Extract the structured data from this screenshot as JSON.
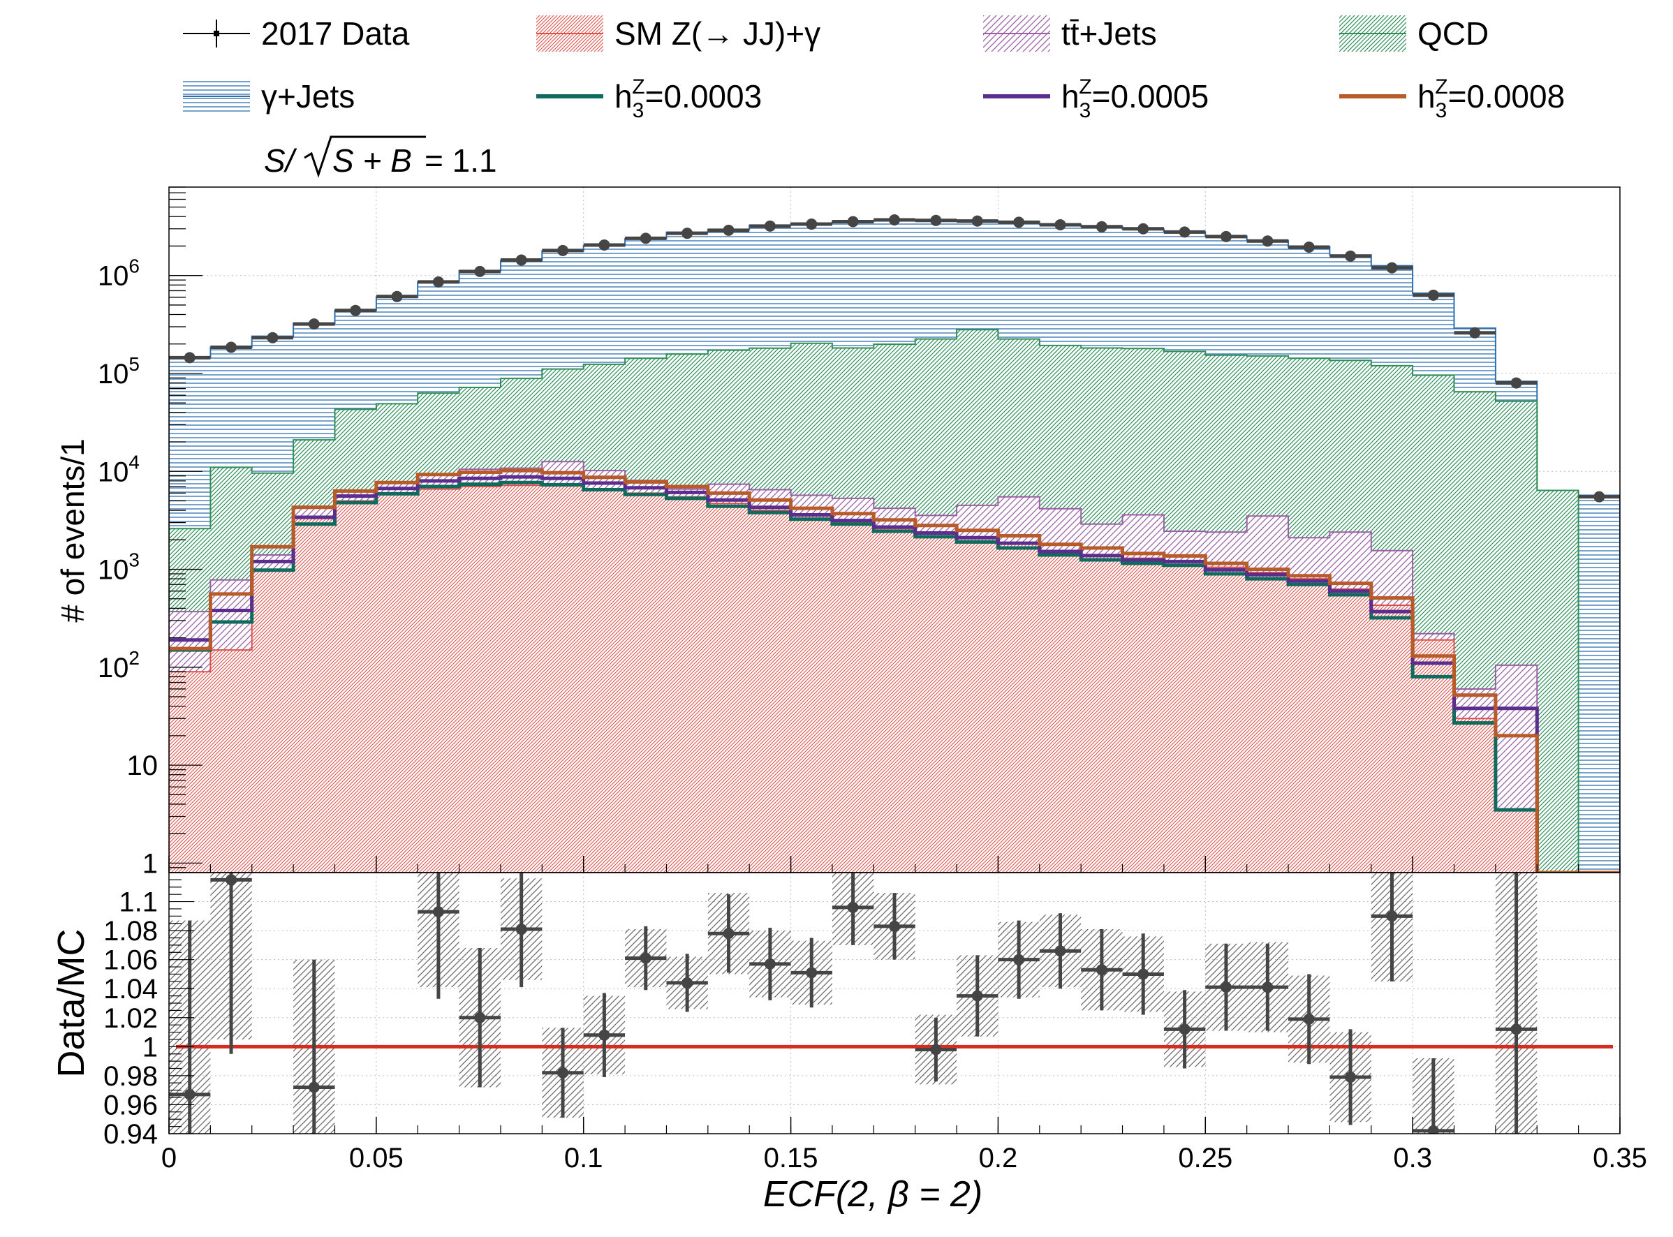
{
  "chart_data": [
    {
      "type": "area",
      "scale": "log",
      "ylabel": "# of events/1",
      "ylim": [
        0.8,
        8000000
      ],
      "xlim": [
        0,
        0.35
      ],
      "bin_width": 0.01,
      "x_bin_low": [
        0,
        0.01,
        0.02,
        0.03,
        0.04,
        0.05,
        0.06,
        0.07,
        0.08,
        0.09,
        0.1,
        0.11,
        0.12,
        0.13,
        0.14,
        0.15,
        0.16,
        0.17,
        0.18,
        0.19,
        0.2,
        0.21,
        0.22,
        0.23,
        0.24,
        0.25,
        0.26,
        0.27,
        0.28,
        0.29,
        0.3,
        0.31,
        0.32,
        0.33,
        0.34
      ],
      "y_ticks": [
        {
          "value": 1,
          "label": "1"
        },
        {
          "value": 10,
          "label": "10"
        },
        {
          "value": 100,
          "label": "10",
          "exp": "2"
        },
        {
          "value": 1000,
          "label": "10",
          "exp": "3"
        },
        {
          "value": 10000,
          "label": "10",
          "exp": "4"
        },
        {
          "value": 100000,
          "label": "10",
          "exp": "5"
        },
        {
          "value": 1000000,
          "label": "10",
          "exp": "6"
        }
      ],
      "annotation": {
        "prefix": "S/",
        "root": "S + B",
        "suffix": " = 1.1"
      },
      "legend": [
        {
          "key": "data",
          "label": "2017 Data",
          "sup": "",
          "sub": ""
        },
        {
          "key": "zg",
          "label": "SM Z(→ JJ)+γ",
          "sup": "",
          "sub": ""
        },
        {
          "key": "tt",
          "label": "tt̄+Jets",
          "sup": "",
          "sub": ""
        },
        {
          "key": "qcd",
          "label": "QCD",
          "sup": "",
          "sub": ""
        },
        {
          "key": "gj",
          "label": "γ+Jets",
          "sup": "",
          "sub": ""
        },
        {
          "key": "h1",
          "label": "h",
          "sup": "Z",
          "sub": "3",
          "rest": "=0.0003"
        },
        {
          "key": "h2",
          "label": "h",
          "sup": "Z",
          "sub": "3",
          "rest": "=0.0005"
        },
        {
          "key": "h3",
          "label": "h",
          "sup": "Z",
          "sub": "3",
          "rest": "=0.0008"
        }
      ],
      "series": [
        {
          "key": "zg",
          "name": "SM Z(→ JJ)+γ",
          "color": "#e0504b",
          "style": "stacked-hatch",
          "values": [
            90,
            150,
            1000,
            3300,
            5000,
            5800,
            6600,
            7000,
            7200,
            7100,
            6600,
            6000,
            5500,
            4700,
            4000,
            3500,
            3000,
            2600,
            2400,
            2100,
            1850,
            1550,
            1400,
            1300,
            1220,
            1050,
            930,
            800,
            630,
            430,
            190,
            30,
            3.5,
            0.8,
            0.8
          ]
        },
        {
          "key": "tt",
          "name": "tt̄+Jets",
          "color": "#9a5fa5",
          "style": "stacked-hatch",
          "values": [
            370,
            780,
            1400,
            4400,
            6300,
            7600,
            9300,
            10500,
            10800,
            12600,
            10200,
            8100,
            6600,
            7400,
            6500,
            5700,
            5300,
            4200,
            3550,
            4500,
            5500,
            4150,
            2900,
            3600,
            2450,
            2400,
            3500,
            2100,
            2400,
            1550,
            220,
            60,
            105,
            0.8,
            0.8
          ]
        },
        {
          "key": "qcd",
          "name": "QCD",
          "color": "#2f8f58",
          "style": "stacked-hatch",
          "values": [
            2600,
            11000,
            9600,
            21000,
            43000,
            49000,
            63000,
            72000,
            89000,
            111000,
            124000,
            143000,
            158000,
            173000,
            181000,
            203000,
            182000,
            199000,
            225000,
            280000,
            225000,
            193000,
            182000,
            180000,
            168000,
            154000,
            151000,
            143000,
            136000,
            120000,
            96000,
            65000,
            52000,
            6400,
            0.8
          ]
        },
        {
          "key": "gj",
          "name": "γ+Jets",
          "color": "#2e6fb0",
          "style": "stacked-hatch",
          "values": [
            145000,
            185000,
            240000,
            325000,
            440000,
            600000,
            860000,
            1120000,
            1420000,
            1780000,
            2020000,
            2380000,
            2760000,
            2950000,
            3260000,
            3420000,
            3560000,
            3660000,
            3660000,
            3640000,
            3550000,
            3320000,
            3180000,
            2980000,
            2780000,
            2520000,
            2280000,
            1960000,
            1620000,
            1260000,
            660000,
            290000,
            83000,
            5700,
            5700
          ]
        },
        {
          "key": "h1",
          "name": "h3Z=0.0003",
          "color": "#0f6b5e",
          "style": "line",
          "values": [
            150,
            290,
            980,
            2900,
            4800,
            5900,
            7000,
            7400,
            7700,
            7300,
            6500,
            5800,
            5300,
            4400,
            3800,
            3250,
            2900,
            2450,
            2150,
            1900,
            1650,
            1400,
            1250,
            1150,
            1100,
            900,
            800,
            700,
            550,
            320,
            80,
            27,
            3.5,
            0.8,
            0.8
          ]
        },
        {
          "key": "h2",
          "name": "h3Z=0.0005",
          "color": "#5a2d8e",
          "style": "line",
          "values": [
            190,
            380,
            1200,
            3400,
            5600,
            6700,
            8000,
            8500,
            8800,
            8500,
            7600,
            6800,
            6100,
            5100,
            4300,
            3600,
            3150,
            2700,
            2350,
            2100,
            1850,
            1520,
            1380,
            1250,
            1200,
            990,
            880,
            760,
            600,
            370,
            110,
            38,
            38,
            0.8,
            0.8
          ]
        },
        {
          "key": "h3",
          "name": "h3Z=0.0008",
          "color": "#b85b28",
          "style": "line",
          "values": [
            155,
            560,
            1700,
            4300,
            6300,
            7700,
            9300,
            9800,
            10200,
            9700,
            8700,
            7800,
            7000,
            6000,
            5100,
            4200,
            3700,
            3200,
            2800,
            2500,
            2200,
            1800,
            1650,
            1450,
            1370,
            1150,
            1000,
            860,
            720,
            510,
            130,
            52,
            20,
            0.8,
            0.8
          ]
        }
      ],
      "data": {
        "key": "data",
        "name": "2017 Data",
        "color": "#454545",
        "values": [
          145000,
          185000,
          232000,
          320000,
          440000,
          610000,
          860000,
          1100000,
          1440000,
          1800000,
          2050000,
          2400000,
          2700000,
          2900000,
          3200000,
          3350000,
          3550000,
          3700000,
          3650000,
          3600000,
          3500000,
          3300000,
          3150000,
          3000000,
          2780000,
          2500000,
          2250000,
          1950000,
          1580000,
          1200000,
          630000,
          260000,
          80000,
          0,
          5500
        ]
      }
    },
    {
      "type": "scatter",
      "ylabel": "Data/MC",
      "xlabel": "ECF(2, β = 2)",
      "ylim": [
        0.94,
        1.12
      ],
      "xlim": [
        0,
        0.35
      ],
      "reference_line": 1.0,
      "reference_color": "#d62c20",
      "y_ticks": [
        0.94,
        0.96,
        0.98,
        1,
        1.02,
        1.04,
        1.06,
        1.08,
        1.1
      ],
      "y_tick_labels": [
        "0.94",
        "0.96",
        "0.98",
        "1",
        "1.02",
        "1.04",
        "1.06",
        "1.08",
        "1.1"
      ],
      "x_ticks": [
        0,
        0.05,
        0.1,
        0.15,
        0.2,
        0.25,
        0.3,
        0.35
      ],
      "x_tick_labels": [
        "0",
        "0.05",
        "0.1",
        "0.15",
        "0.2",
        "0.25",
        "0.3",
        "0.35"
      ],
      "points": [
        {
          "x": 0.005,
          "y": 0.967,
          "err": 0.12,
          "band": 0.12
        },
        {
          "x": 0.015,
          "y": 1.115,
          "err": 0.12,
          "band": 0.11
        },
        {
          "x": 0.035,
          "y": 0.972,
          "err": 0.088,
          "band": 0.088
        },
        {
          "x": 0.065,
          "y": 1.093,
          "err": 0.06,
          "band": 0.052
        },
        {
          "x": 0.075,
          "y": 1.02,
          "err": 0.048,
          "band": 0.048
        },
        {
          "x": 0.085,
          "y": 1.081,
          "err": 0.04,
          "band": 0.035
        },
        {
          "x": 0.095,
          "y": 0.982,
          "err": 0.031,
          "band": 0.031
        },
        {
          "x": 0.105,
          "y": 1.008,
          "err": 0.029,
          "band": 0.027
        },
        {
          "x": 0.115,
          "y": 1.061,
          "err": 0.022,
          "band": 0.02
        },
        {
          "x": 0.125,
          "y": 1.044,
          "err": 0.02,
          "band": 0.018
        },
        {
          "x": 0.135,
          "y": 1.078,
          "err": 0.027,
          "band": 0.028
        },
        {
          "x": 0.145,
          "y": 1.057,
          "err": 0.025,
          "band": 0.023
        },
        {
          "x": 0.155,
          "y": 1.051,
          "err": 0.024,
          "band": 0.022
        },
        {
          "x": 0.165,
          "y": 1.096,
          "err": 0.026,
          "band": 0.026
        },
        {
          "x": 0.175,
          "y": 1.083,
          "err": 0.023,
          "band": 0.023
        },
        {
          "x": 0.185,
          "y": 0.998,
          "err": 0.022,
          "band": 0.024
        },
        {
          "x": 0.195,
          "y": 1.035,
          "err": 0.028,
          "band": 0.028
        },
        {
          "x": 0.205,
          "y": 1.06,
          "err": 0.027,
          "band": 0.026
        },
        {
          "x": 0.215,
          "y": 1.066,
          "err": 0.026,
          "band": 0.025
        },
        {
          "x": 0.225,
          "y": 1.053,
          "err": 0.028,
          "band": 0.028
        },
        {
          "x": 0.235,
          "y": 1.05,
          "err": 0.028,
          "band": 0.026
        },
        {
          "x": 0.245,
          "y": 1.012,
          "err": 0.027,
          "band": 0.026
        },
        {
          "x": 0.255,
          "y": 1.041,
          "err": 0.03,
          "band": 0.03
        },
        {
          "x": 0.265,
          "y": 1.041,
          "err": 0.03,
          "band": 0.031
        },
        {
          "x": 0.275,
          "y": 1.019,
          "err": 0.031,
          "band": 0.03
        },
        {
          "x": 0.285,
          "y": 0.979,
          "err": 0.033,
          "band": 0.031
        },
        {
          "x": 0.295,
          "y": 1.09,
          "err": 0.045,
          "band": 0.045
        },
        {
          "x": 0.305,
          "y": 0.942,
          "err": 0.05,
          "band": 0.05
        },
        {
          "x": 0.325,
          "y": 1.012,
          "err": 0.11,
          "band": 0.11
        }
      ]
    }
  ]
}
